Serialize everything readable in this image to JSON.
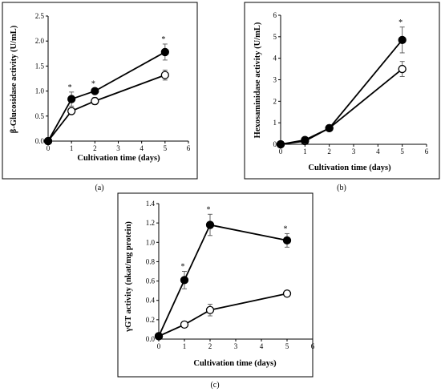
{
  "chart_data": [
    {
      "type": "line",
      "panel_label": "(a)",
      "xlabel": "Cultivation time (days)",
      "ylabel": "β-Glucosidase activity (U/mL)",
      "xlim": [
        0,
        6
      ],
      "ylim": [
        0,
        2.5
      ],
      "xticks": [
        0,
        1,
        2,
        3,
        4,
        5,
        6
      ],
      "yticks": [
        "0.0",
        "0.5",
        "1.0",
        "1.5",
        "2.0",
        "2.5"
      ],
      "grid": false,
      "series": [
        {
          "marker": "filled",
          "x": [
            0,
            1,
            2,
            5
          ],
          "y": [
            0.0,
            0.84,
            1.0,
            1.78
          ],
          "err": [
            0,
            0.14,
            0.05,
            0.16
          ],
          "sig": [
            "",
            "*",
            "*",
            "*"
          ]
        },
        {
          "marker": "open",
          "x": [
            0,
            1,
            2,
            5
          ],
          "y": [
            0.0,
            0.6,
            0.8,
            1.32
          ],
          "err": [
            0,
            0.05,
            0.07,
            0.1
          ],
          "sig": [
            "",
            "",
            "",
            ""
          ]
        }
      ]
    },
    {
      "type": "line",
      "panel_label": "(b)",
      "xlabel": "Cultivation time (days)",
      "ylabel": "Hexosaminidase activity (U/mL)",
      "xlim": [
        0,
        6
      ],
      "ylim": [
        0,
        6
      ],
      "xticks": [
        0,
        1,
        2,
        3,
        4,
        5,
        6
      ],
      "yticks": [
        "0",
        "1",
        "2",
        "3",
        "4",
        "5",
        "6"
      ],
      "grid": false,
      "series": [
        {
          "marker": "filled",
          "x": [
            0,
            1,
            2,
            5
          ],
          "y": [
            0.0,
            0.2,
            0.75,
            4.85
          ],
          "err": [
            0,
            0.05,
            0.05,
            0.6
          ],
          "sig": [
            "",
            "",
            "",
            "*"
          ]
        },
        {
          "marker": "open",
          "x": [
            0,
            1,
            2,
            5
          ],
          "y": [
            0.0,
            0.15,
            0.75,
            3.5
          ],
          "err": [
            0,
            0.05,
            0.05,
            0.35
          ],
          "sig": [
            "",
            "",
            "",
            ""
          ]
        }
      ]
    },
    {
      "type": "line",
      "panel_label": "(c)",
      "xlabel": "Cultivation time (days)",
      "ylabel": "γGT activity (nkat/mg protein)",
      "xlim": [
        0,
        6
      ],
      "ylim": [
        0,
        1.4
      ],
      "xticks": [
        0,
        1,
        2,
        3,
        4,
        5,
        6
      ],
      "yticks": [
        "0.0",
        "0.2",
        "0.4",
        "0.6",
        "0.8",
        "1.0",
        "1.2",
        "1.4"
      ],
      "grid": false,
      "series": [
        {
          "marker": "filled",
          "x": [
            0,
            1,
            2,
            5
          ],
          "y": [
            0.03,
            0.61,
            1.18,
            1.02
          ],
          "err": [
            0,
            0.09,
            0.11,
            0.07
          ],
          "sig": [
            "",
            "*",
            "*",
            "*"
          ]
        },
        {
          "marker": "open",
          "x": [
            0,
            1,
            2,
            5
          ],
          "y": [
            0.03,
            0.15,
            0.3,
            0.47
          ],
          "err": [
            0,
            0.02,
            0.06,
            0.02
          ],
          "sig": [
            "",
            "",
            "",
            ""
          ]
        }
      ]
    }
  ]
}
